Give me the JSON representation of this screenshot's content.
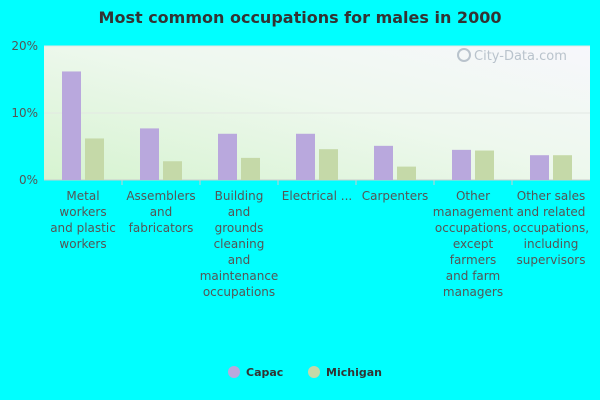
{
  "chart_data": {
    "type": "bar",
    "title": "Most common occupations for males in 2000",
    "xlabel": "",
    "ylabel": "",
    "ylim": [
      0,
      20
    ],
    "yticks": [
      "0%",
      "10%",
      "20%"
    ],
    "grid": true,
    "legend_position": "bottom-center",
    "categories": [
      "Metal workers and plastic workers",
      "Assemblers and fabricators",
      "Building and grounds cleaning and maintenance occupations",
      "Electrical ...",
      "Carpenters",
      "Other management occupations, except farmers and farm managers",
      "Other sales and related occupations, including supervisors"
    ],
    "category_lines": [
      [
        "Metal",
        "workers",
        "and plastic",
        "workers"
      ],
      [
        "Assemblers",
        "and",
        "fabricators"
      ],
      [
        "Building",
        "and",
        "grounds",
        "cleaning",
        "and",
        "maintenance",
        "occupations"
      ],
      [
        "Electrical ..."
      ],
      [
        "Carpenters"
      ],
      [
        "Other",
        "management",
        "occupations,",
        "except",
        "farmers",
        "and farm",
        "managers"
      ],
      [
        "Other sales",
        "and related",
        "occupations,",
        "including",
        "supervisors"
      ]
    ],
    "series": [
      {
        "name": "Capac",
        "color": "#b9a8dd",
        "values": [
          16.2,
          7.7,
          6.9,
          6.9,
          5.1,
          4.5,
          3.7
        ]
      },
      {
        "name": "Michigan",
        "color": "#c5d9a8",
        "values": [
          6.2,
          2.8,
          3.3,
          4.6,
          2.0,
          4.4,
          3.7
        ]
      }
    ]
  },
  "watermark": "City-Data.com"
}
